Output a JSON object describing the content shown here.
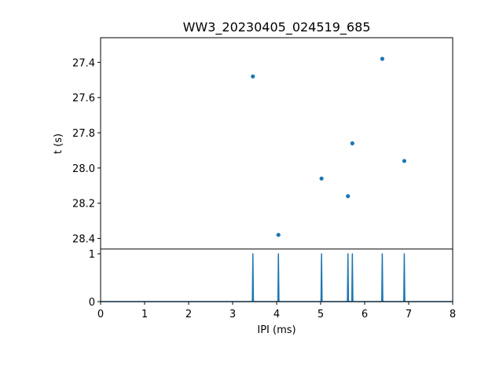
{
  "chart_data": [
    {
      "type": "scatter",
      "title": "WW3_20230405_024519_685",
      "xlabel": "",
      "ylabel": "t (s)",
      "xlim": [
        0,
        8
      ],
      "ylim": [
        28.46,
        27.26
      ],
      "y_inverted": true,
      "yticks": [
        27.4,
        27.6,
        27.8,
        28.0,
        28.2,
        28.4
      ],
      "ytick_labels": [
        "27.4",
        "27.6",
        "27.8",
        "28.0",
        "28.2",
        "28.4"
      ],
      "grid": false,
      "color": "#1f77b4",
      "points": [
        {
          "x": 3.46,
          "y": 27.48
        },
        {
          "x": 4.04,
          "y": 28.38
        },
        {
          "x": 5.02,
          "y": 28.06
        },
        {
          "x": 5.62,
          "y": 28.16
        },
        {
          "x": 5.72,
          "y": 27.86
        },
        {
          "x": 6.4,
          "y": 27.38
        },
        {
          "x": 6.9,
          "y": 27.96
        }
      ]
    },
    {
      "type": "line",
      "xlabel": "IPI (ms)",
      "ylabel": "",
      "xlim": [
        0,
        8
      ],
      "ylim": [
        0,
        1.1
      ],
      "xticks": [
        0,
        1,
        2,
        3,
        4,
        5,
        6,
        7,
        8
      ],
      "xtick_labels": [
        "0",
        "1",
        "2",
        "3",
        "4",
        "5",
        "6",
        "7",
        "8"
      ],
      "yticks": [
        0,
        1
      ],
      "ytick_labels": [
        "0",
        "1"
      ],
      "grid": false,
      "color": "#1f77b4",
      "spikes_x": [
        3.46,
        4.04,
        5.02,
        5.62,
        5.72,
        6.4,
        6.9
      ],
      "spike_height": 1
    }
  ]
}
